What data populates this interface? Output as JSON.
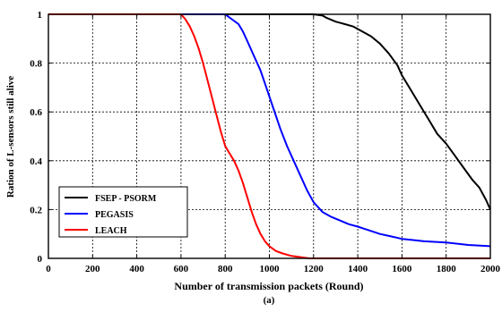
{
  "chart_data": {
    "type": "line",
    "title": "",
    "xlabel": "Number of transmission packets (Round)",
    "ylabel": "Ration of L-sensors still alive",
    "caption": "(a)",
    "xlim": [
      0,
      2000
    ],
    "ylim": [
      0,
      1
    ],
    "xticks": [
      0,
      200,
      400,
      600,
      800,
      1000,
      1200,
      1400,
      1600,
      1800,
      2000
    ],
    "yticks": [
      0,
      0.2,
      0.4,
      0.6,
      0.8,
      1
    ],
    "xtick_labels": [
      "0",
      "200",
      "400",
      "600",
      "800",
      "1000",
      "1200",
      "1400",
      "1600",
      "1800",
      "2000"
    ],
    "ytick_labels": [
      "0",
      "0.2",
      "0.4",
      "0.6",
      "0.8",
      "1"
    ],
    "grid": true,
    "legend_position": "bottom-left",
    "series": [
      {
        "name": "FSEP - PSORM",
        "color": "#000000",
        "points": [
          [
            0,
            1
          ],
          [
            1200,
            1
          ],
          [
            1240,
            0.995
          ],
          [
            1260,
            0.985
          ],
          [
            1300,
            0.97
          ],
          [
            1340,
            0.96
          ],
          [
            1380,
            0.95
          ],
          [
            1420,
            0.93
          ],
          [
            1460,
            0.91
          ],
          [
            1500,
            0.88
          ],
          [
            1540,
            0.84
          ],
          [
            1580,
            0.79
          ],
          [
            1600,
            0.75
          ],
          [
            1640,
            0.69
          ],
          [
            1680,
            0.63
          ],
          [
            1720,
            0.57
          ],
          [
            1760,
            0.51
          ],
          [
            1800,
            0.47
          ],
          [
            1840,
            0.42
          ],
          [
            1880,
            0.37
          ],
          [
            1920,
            0.32
          ],
          [
            1950,
            0.29
          ],
          [
            1980,
            0.24
          ],
          [
            2000,
            0.2
          ]
        ]
      },
      {
        "name": "PEGASIS",
        "color": "#0000ff",
        "points": [
          [
            0,
            1
          ],
          [
            800,
            1
          ],
          [
            830,
            0.98
          ],
          [
            860,
            0.96
          ],
          [
            880,
            0.93
          ],
          [
            900,
            0.89
          ],
          [
            930,
            0.83
          ],
          [
            960,
            0.77
          ],
          [
            990,
            0.69
          ],
          [
            1020,
            0.61
          ],
          [
            1050,
            0.53
          ],
          [
            1080,
            0.46
          ],
          [
            1110,
            0.4
          ],
          [
            1140,
            0.34
          ],
          [
            1170,
            0.28
          ],
          [
            1200,
            0.23
          ],
          [
            1240,
            0.19
          ],
          [
            1280,
            0.17
          ],
          [
            1320,
            0.155
          ],
          [
            1360,
            0.14
          ],
          [
            1400,
            0.13
          ],
          [
            1450,
            0.115
          ],
          [
            1500,
            0.1
          ],
          [
            1550,
            0.09
          ],
          [
            1600,
            0.08
          ],
          [
            1650,
            0.075
          ],
          [
            1700,
            0.07
          ],
          [
            1800,
            0.065
          ],
          [
            1900,
            0.055
          ],
          [
            2000,
            0.05
          ]
        ]
      },
      {
        "name": "LEACH",
        "color": "#ff0000",
        "points": [
          [
            0,
            1
          ],
          [
            600,
            1
          ],
          [
            620,
            0.98
          ],
          [
            640,
            0.95
          ],
          [
            660,
            0.91
          ],
          [
            680,
            0.86
          ],
          [
            700,
            0.8
          ],
          [
            720,
            0.73
          ],
          [
            740,
            0.66
          ],
          [
            760,
            0.59
          ],
          [
            780,
            0.52
          ],
          [
            800,
            0.46
          ],
          [
            820,
            0.43
          ],
          [
            840,
            0.4
          ],
          [
            860,
            0.36
          ],
          [
            880,
            0.31
          ],
          [
            900,
            0.25
          ],
          [
            920,
            0.19
          ],
          [
            940,
            0.14
          ],
          [
            960,
            0.1
          ],
          [
            980,
            0.07
          ],
          [
            1000,
            0.05
          ],
          [
            1030,
            0.03
          ],
          [
            1060,
            0.02
          ],
          [
            1100,
            0.01
          ],
          [
            1140,
            0.005
          ],
          [
            1180,
            0
          ],
          [
            2000,
            0
          ]
        ]
      }
    ]
  }
}
